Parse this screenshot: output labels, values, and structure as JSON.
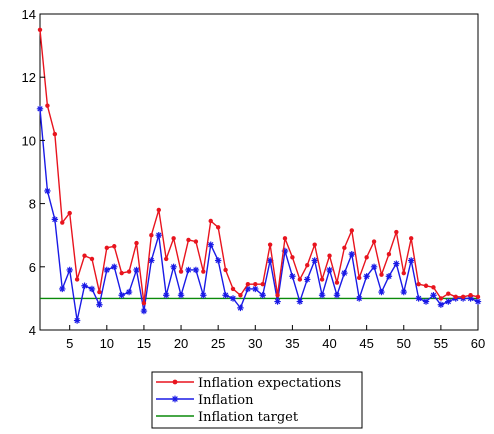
{
  "chart_data": {
    "type": "line",
    "title": "",
    "xlabel": "",
    "ylabel": "",
    "xlim": [
      1,
      60
    ],
    "ylim": [
      4,
      14
    ],
    "x_ticks": [
      5,
      10,
      15,
      20,
      25,
      30,
      35,
      40,
      45,
      50,
      55,
      60
    ],
    "y_ticks": [
      4,
      6,
      8,
      10,
      12,
      14
    ],
    "grid": false,
    "legend_position": "bottom-center",
    "x": [
      1,
      2,
      3,
      4,
      5,
      6,
      7,
      8,
      9,
      10,
      11,
      12,
      13,
      14,
      15,
      16,
      17,
      18,
      19,
      20,
      21,
      22,
      23,
      24,
      25,
      26,
      27,
      28,
      29,
      30,
      31,
      32,
      33,
      34,
      35,
      36,
      37,
      38,
      39,
      40,
      41,
      42,
      43,
      44,
      45,
      46,
      47,
      48,
      49,
      50,
      51,
      52,
      53,
      54,
      55,
      56,
      57,
      58,
      59,
      60
    ],
    "series": [
      {
        "name": "Inflation expectations",
        "color": "#e8141e",
        "marker": "dot",
        "values": [
          13.5,
          11.1,
          10.2,
          7.4,
          7.7,
          5.6,
          6.35,
          6.25,
          5.2,
          6.6,
          6.65,
          5.8,
          5.85,
          6.75,
          4.85,
          7.0,
          7.8,
          6.25,
          6.9,
          5.85,
          6.85,
          6.8,
          5.85,
          7.45,
          7.25,
          5.9,
          5.3,
          5.1,
          5.45,
          5.45,
          5.45,
          6.7,
          5.1,
          6.9,
          6.3,
          5.6,
          6.05,
          6.7,
          5.6,
          6.35,
          5.5,
          6.6,
          7.15,
          5.65,
          6.3,
          6.8,
          5.75,
          6.4,
          7.1,
          5.8,
          6.9,
          5.45,
          5.4,
          5.35,
          5.0,
          5.15,
          5.05,
          5.05,
          5.1,
          5.05
        ]
      },
      {
        "name": "Inflation",
        "color": "#1a1ae6",
        "marker": "star",
        "values": [
          11.0,
          8.4,
          7.5,
          5.3,
          5.9,
          4.3,
          5.4,
          5.3,
          4.8,
          5.9,
          6.0,
          5.1,
          5.2,
          5.9,
          4.6,
          6.2,
          7.0,
          5.1,
          6.0,
          5.1,
          5.9,
          5.9,
          5.1,
          6.7,
          6.2,
          5.1,
          5.0,
          4.7,
          5.3,
          5.3,
          5.1,
          6.2,
          4.9,
          6.5,
          5.7,
          4.9,
          5.6,
          6.2,
          5.1,
          5.9,
          5.1,
          5.8,
          6.4,
          5.0,
          5.7,
          6.0,
          5.2,
          5.7,
          6.1,
          5.2,
          6.2,
          5.0,
          4.9,
          5.1,
          4.8,
          4.9,
          5.0,
          5.0,
          5.0,
          4.9
        ]
      },
      {
        "name": "Inflation target",
        "color": "#0a8a0a",
        "marker": "none",
        "values": [
          5,
          5,
          5,
          5,
          5,
          5,
          5,
          5,
          5,
          5,
          5,
          5,
          5,
          5,
          5,
          5,
          5,
          5,
          5,
          5,
          5,
          5,
          5,
          5,
          5,
          5,
          5,
          5,
          5,
          5,
          5,
          5,
          5,
          5,
          5,
          5,
          5,
          5,
          5,
          5,
          5,
          5,
          5,
          5,
          5,
          5,
          5,
          5,
          5,
          5,
          5,
          5,
          5,
          5,
          5,
          5,
          5,
          5,
          5,
          5
        ]
      }
    ]
  }
}
